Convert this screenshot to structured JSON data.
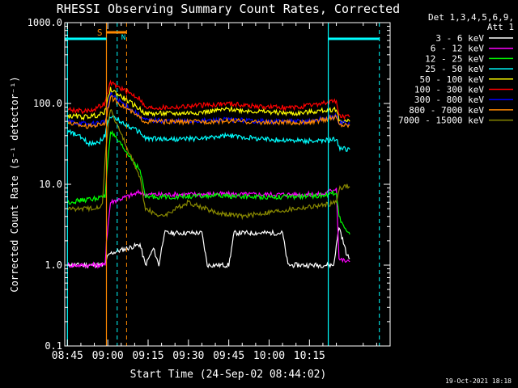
{
  "chart_data": {
    "type": "line",
    "title": "RHESSI Observing Summary Count Rates, Corrected",
    "xlabel": "Start Time (24-Sep-02 08:44:02)",
    "ylabel": "Corrected Count Rate (s⁻¹ detector⁻¹)",
    "yscale": "log",
    "ylim": [
      0.1,
      1000
    ],
    "xlim_minutes": [
      -1,
      120
    ],
    "x_tick_labels": [
      "08:45",
      "09:00",
      "09:15",
      "09:30",
      "09:45",
      "10:00",
      "10:15"
    ],
    "x_tick_minutes": [
      0,
      15,
      30,
      45,
      60,
      75,
      90
    ],
    "y_tick_labels": [
      "0.1",
      "1.0",
      "10.0",
      "100.0",
      "1000.0"
    ],
    "y_tick_values": [
      0.1,
      1,
      10,
      100,
      1000
    ],
    "legend_header": [
      "Det 1,3,4,5,6,9,",
      "Att 1"
    ],
    "legend_position": "right",
    "series": [
      {
        "name": "3 - 6 keV",
        "color": "#ffffff",
        "points": [
          [
            0,
            1
          ],
          [
            14,
            1
          ],
          [
            14.5,
            1.2
          ],
          [
            16,
            1.4
          ],
          [
            27,
            1.8
          ],
          [
            29,
            1
          ],
          [
            32,
            1.6
          ],
          [
            34,
            1
          ],
          [
            36,
            2.5
          ],
          [
            50,
            2.5
          ],
          [
            52,
            1
          ],
          [
            60,
            1
          ],
          [
            62,
            2.5
          ],
          [
            80,
            2.5
          ],
          [
            82,
            1
          ],
          [
            99,
            1
          ],
          [
            101,
            3
          ],
          [
            104,
            1.3
          ],
          [
            105,
            1.2
          ]
        ]
      },
      {
        "name": "6 - 12 keV",
        "color": "#ff00ff",
        "points": [
          [
            0,
            1
          ],
          [
            14,
            1
          ],
          [
            14.5,
            2
          ],
          [
            16,
            6
          ],
          [
            27,
            8
          ],
          [
            29,
            7.5
          ],
          [
            35,
            7.5
          ],
          [
            45,
            7.5
          ],
          [
            55,
            7.6
          ],
          [
            65,
            7.5
          ],
          [
            75,
            7.5
          ],
          [
            85,
            7.5
          ],
          [
            95,
            7.5
          ],
          [
            100,
            9
          ],
          [
            101,
            1.2
          ],
          [
            104,
            1.1
          ],
          [
            105,
            1.1
          ]
        ]
      },
      {
        "name": "12 - 25 keV",
        "color": "#00ff00",
        "points": [
          [
            0,
            6
          ],
          [
            8,
            6.5
          ],
          [
            14,
            7
          ],
          [
            15,
            20
          ],
          [
            16,
            45
          ],
          [
            27,
            15
          ],
          [
            29,
            7
          ],
          [
            40,
            7
          ],
          [
            55,
            7.2
          ],
          [
            70,
            7
          ],
          [
            85,
            7
          ],
          [
            95,
            7.3
          ],
          [
            100,
            8
          ],
          [
            101,
            4
          ],
          [
            104,
            2.5
          ],
          [
            105,
            2.4
          ]
        ]
      },
      {
        "name": "25 - 50 keV",
        "color": "#00ffff",
        "points": [
          [
            0,
            45
          ],
          [
            4,
            40
          ],
          [
            8,
            32
          ],
          [
            12,
            34
          ],
          [
            14,
            40
          ],
          [
            15,
            60
          ],
          [
            16,
            70
          ],
          [
            27,
            44
          ],
          [
            29,
            37
          ],
          [
            40,
            36
          ],
          [
            50,
            37
          ],
          [
            60,
            40
          ],
          [
            70,
            37
          ],
          [
            80,
            35
          ],
          [
            95,
            34
          ],
          [
            100,
            37
          ],
          [
            101,
            28
          ],
          [
            104,
            27
          ],
          [
            105,
            27
          ]
        ]
      },
      {
        "name": "50 - 100 keV",
        "color": "#ffff00",
        "points": [
          [
            0,
            70
          ],
          [
            6,
            68
          ],
          [
            12,
            72
          ],
          [
            14,
            80
          ],
          [
            15,
            110
          ],
          [
            16,
            150
          ],
          [
            27,
            85
          ],
          [
            29,
            75
          ],
          [
            40,
            75
          ],
          [
            50,
            78
          ],
          [
            60,
            85
          ],
          [
            70,
            80
          ],
          [
            85,
            75
          ],
          [
            100,
            85
          ],
          [
            101,
            62
          ],
          [
            104,
            60
          ],
          [
            105,
            60
          ]
        ]
      },
      {
        "name": "100 - 300 keV",
        "color": "#ff0000",
        "points": [
          [
            0,
            85
          ],
          [
            6,
            80
          ],
          [
            10,
            85
          ],
          [
            14,
            100
          ],
          [
            15,
            140
          ],
          [
            16,
            180
          ],
          [
            27,
            115
          ],
          [
            29,
            88
          ],
          [
            40,
            90
          ],
          [
            50,
            95
          ],
          [
            60,
            100
          ],
          [
            70,
            92
          ],
          [
            85,
            88
          ],
          [
            98,
            105
          ],
          [
            100,
            110
          ],
          [
            101,
            70
          ],
          [
            104,
            68
          ],
          [
            105,
            68
          ]
        ]
      },
      {
        "name": "300 - 800 keV",
        "color": "#0000ff",
        "points": [
          [
            0,
            60
          ],
          [
            8,
            55
          ],
          [
            14,
            60
          ],
          [
            15,
            90
          ],
          [
            16,
            130
          ],
          [
            27,
            70
          ],
          [
            29,
            62
          ],
          [
            45,
            60
          ],
          [
            60,
            63
          ],
          [
            75,
            60
          ],
          [
            90,
            60
          ],
          [
            100,
            70
          ],
          [
            101,
            58
          ],
          [
            104,
            57
          ],
          [
            105,
            57
          ]
        ]
      },
      {
        "name": "800 - 7000 keV",
        "color": "#ff8800",
        "points": [
          [
            0,
            58
          ],
          [
            8,
            52
          ],
          [
            14,
            57
          ],
          [
            15,
            85
          ],
          [
            16,
            120
          ],
          [
            27,
            66
          ],
          [
            29,
            60
          ],
          [
            45,
            59
          ],
          [
            60,
            61
          ],
          [
            75,
            58
          ],
          [
            90,
            58
          ],
          [
            100,
            68
          ],
          [
            101,
            55
          ],
          [
            104,
            54
          ],
          [
            105,
            54
          ]
        ]
      },
      {
        "name": "7000 - 15000 keV",
        "color": "#888800",
        "points": [
          [
            0,
            5
          ],
          [
            8,
            5
          ],
          [
            13,
            5.5
          ],
          [
            14,
            20
          ],
          [
            15,
            50
          ],
          [
            16,
            85
          ],
          [
            27,
            12
          ],
          [
            29,
            5
          ],
          [
            35,
            4
          ],
          [
            45,
            6
          ],
          [
            55,
            4.5
          ],
          [
            65,
            4
          ],
          [
            75,
            4.5
          ],
          [
            85,
            5
          ],
          [
            95,
            5.5
          ],
          [
            100,
            6
          ],
          [
            101,
            9
          ],
          [
            104,
            9.5
          ],
          [
            105,
            9.2
          ]
        ]
      }
    ],
    "flag_bar_label": "S",
    "status_bar_label": "N",
    "timestamp": "19-Oct-2021 18:18"
  }
}
